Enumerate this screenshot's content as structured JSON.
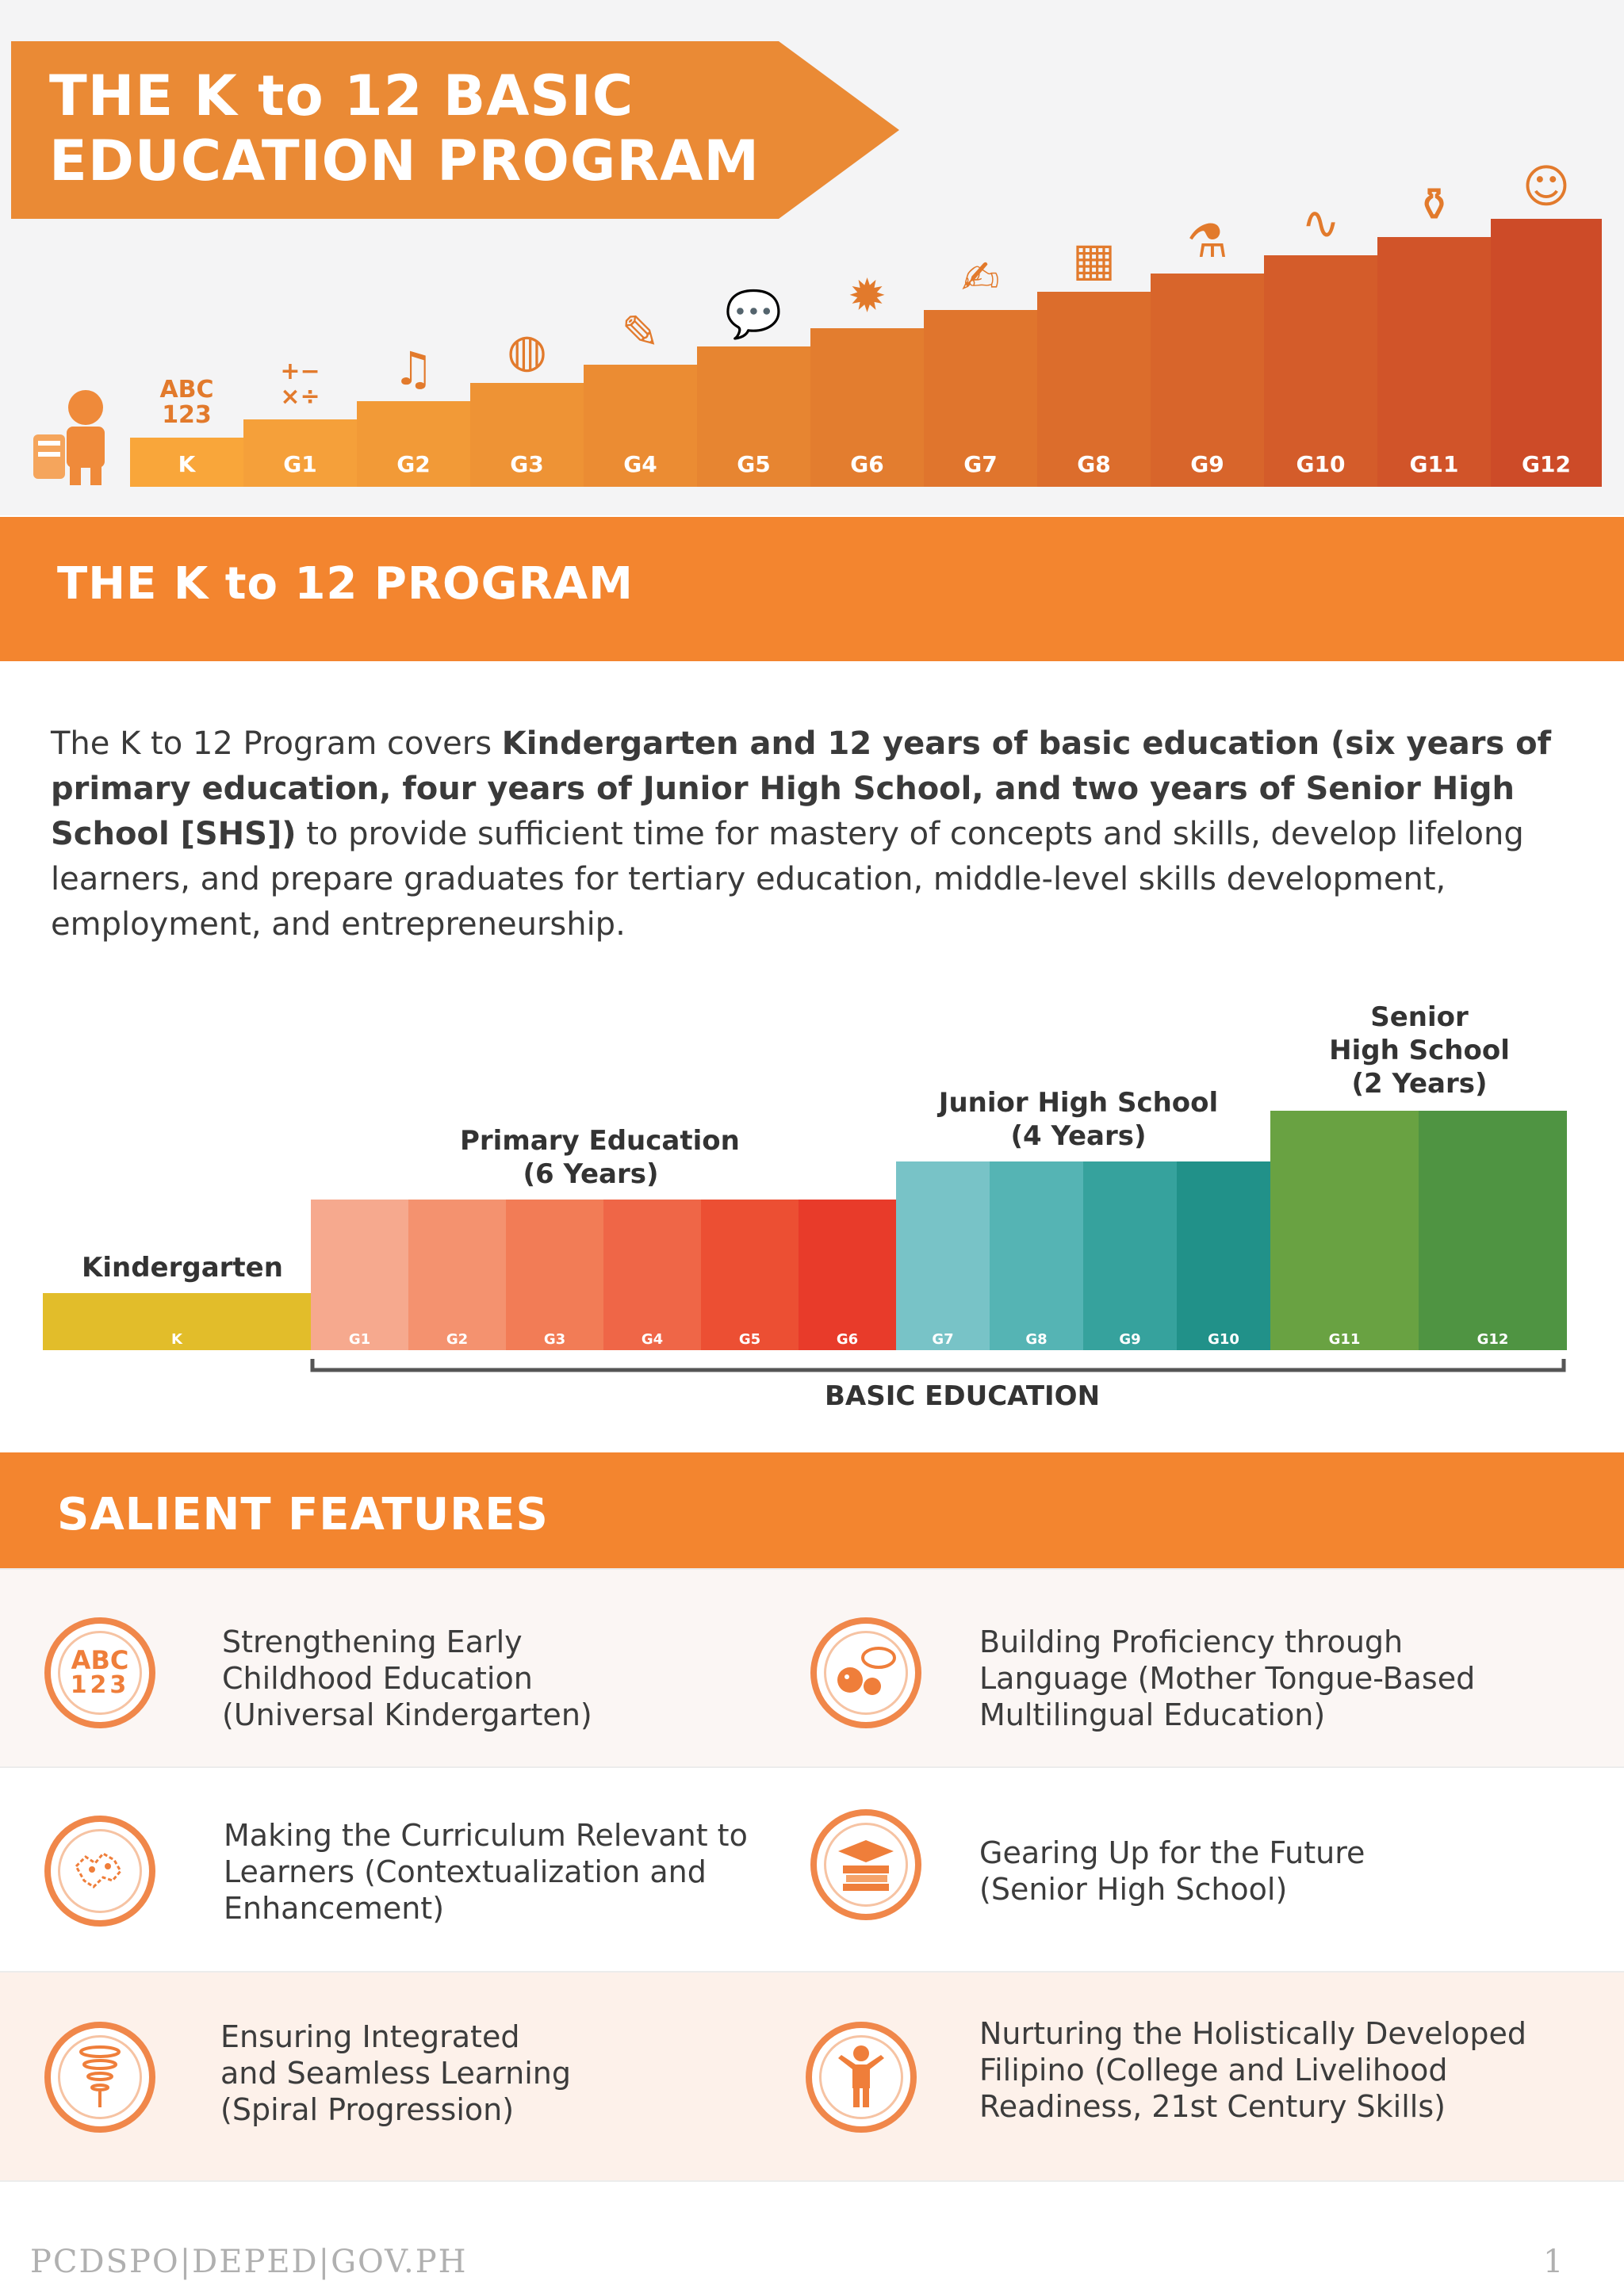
{
  "header": {
    "title_line1": "THE K to 12 BASIC",
    "title_line2": "EDUCATION PROGRAM",
    "steps": [
      {
        "label": "K",
        "icon": "abc-123-icon",
        "color": "#f9a63a"
      },
      {
        "label": "G1",
        "icon": "math-symbols-icon",
        "color": "#f5a03a"
      },
      {
        "label": "G2",
        "icon": "music-note-icon",
        "color": "#f29a37"
      },
      {
        "label": "G3",
        "icon": "basketball-icon",
        "color": "#ee9335"
      },
      {
        "label": "G4",
        "icon": "palette-icon",
        "color": "#eb8c33"
      },
      {
        "label": "G5",
        "icon": "speech-bubbles-icon",
        "color": "#e78531"
      },
      {
        "label": "G6",
        "icon": "sun-icon",
        "color": "#e37d2f"
      },
      {
        "label": "G7",
        "icon": "pencil-paper-icon",
        "color": "#e0752d"
      },
      {
        "label": "G8",
        "icon": "calculator-icon",
        "color": "#dc6d2c"
      },
      {
        "label": "G9",
        "icon": "microscope-icon",
        "color": "#d8652b"
      },
      {
        "label": "G10",
        "icon": "graph-icon",
        "color": "#d45c2a"
      },
      {
        "label": "G11",
        "icon": "beaker-icon",
        "color": "#d15429"
      },
      {
        "label": "G12",
        "icon": "graduate-icon",
        "color": "#cd4b28"
      }
    ]
  },
  "program": {
    "section_title": "THE K to 12 PROGRAM",
    "intro_part1": "The K to 12 Program covers ",
    "intro_bold": "Kindergarten and 12 years of basic education (six years of primary education, four years of Junior High School, and two years of Senior High School [SHS])",
    "intro_part2": " to provide sufficient time for mastery of concepts and skills, develop lifelong learners, and prepare graduates for tertiary education, middle-level skills development, employment, and entrepreneurship."
  },
  "structure": {
    "kindergarten_label": "Kindergarten",
    "primary_label_line1": "Primary Education",
    "primary_label_line2": "(6 Years)",
    "jhs_label_line1": "Junior High School",
    "jhs_label_line2": "(4 Years)",
    "shs_label_line1": "Senior",
    "shs_label_line2": "High School",
    "shs_label_line3": "(2 Years)",
    "basic_education_label": "BASIC EDUCATION",
    "segments": [
      {
        "label": "K",
        "color": "#e2bd2a"
      },
      {
        "label": "G1",
        "color": "#f6a98e"
      },
      {
        "label": "G2",
        "color": "#f4926f"
      },
      {
        "label": "G3",
        "color": "#f27c56"
      },
      {
        "label": "G4",
        "color": "#ef6647"
      },
      {
        "label": "G5",
        "color": "#ec4f33"
      },
      {
        "label": "G6",
        "color": "#e83b2a"
      },
      {
        "label": "G7",
        "color": "#78c3c7"
      },
      {
        "label": "G8",
        "color": "#55b4b4"
      },
      {
        "label": "G9",
        "color": "#36a29d"
      },
      {
        "label": "G10",
        "color": "#219189"
      },
      {
        "label": "G11",
        "color": "#69a242"
      },
      {
        "label": "G12",
        "color": "#4f9442"
      }
    ]
  },
  "features": {
    "section_title": "SALIENT FEATURES",
    "items": [
      {
        "icon": "abc-123-icon",
        "icon_text_1": "ABC",
        "icon_text_2": "123",
        "lines": [
          "Strengthening Early",
          "Childhood Education",
          "(Universal Kindergarten)"
        ]
      },
      {
        "icon": "speaking-faces-icon",
        "lines": [
          "Building Proficiency through",
          "Language (Mother Tongue-Based",
          "Multilingual Education)"
        ]
      },
      {
        "icon": "philippine-map-icon",
        "lines": [
          "Making the Curriculum Relevant to",
          "Learners (Contextualization and",
          "Enhancement)"
        ]
      },
      {
        "icon": "books-graduation-cap-icon",
        "lines": [
          "Gearing Up for the Future",
          "(Senior High School)"
        ]
      },
      {
        "icon": "spiral-icon",
        "lines": [
          "Ensuring Integrated",
          "and Seamless Learning",
          "(Spiral Progression)"
        ]
      },
      {
        "icon": "person-icon",
        "lines": [
          "Nurturing the Holistically Developed",
          "Filipino (College and Livelihood",
          "Readiness, 21st Century Skills)"
        ]
      }
    ]
  },
  "footer": {
    "source": "PCDSPO|DEPED|GOV.PH",
    "page_number": "1"
  }
}
